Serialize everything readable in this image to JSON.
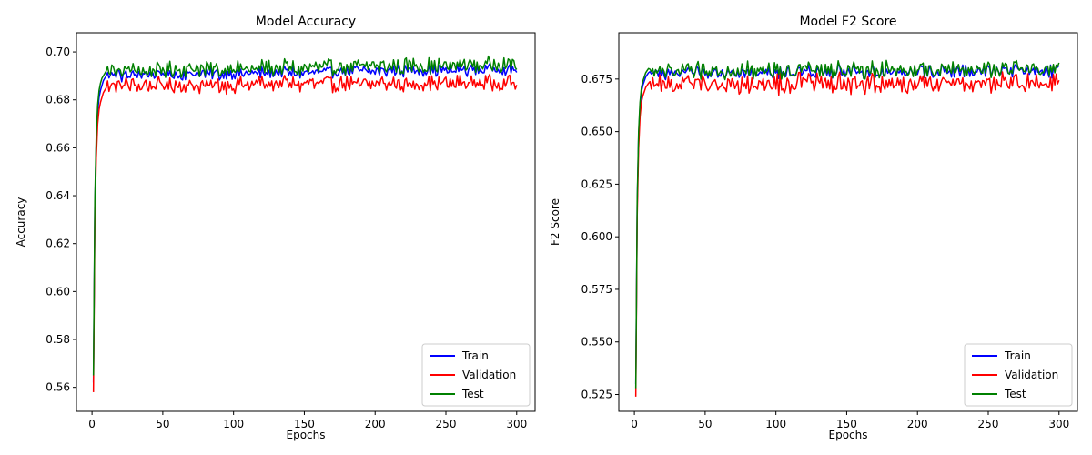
{
  "chart_data": [
    {
      "type": "line",
      "title": "Model Accuracy",
      "xlabel": "Epochs",
      "ylabel": "Accuracy",
      "xlim": [
        -11,
        313
      ],
      "ylim": [
        0.55,
        0.708
      ],
      "xticks": [
        0,
        50,
        100,
        150,
        200,
        250,
        300
      ],
      "yticks": [
        0.56,
        0.58,
        0.6,
        0.62,
        0.64,
        0.66,
        0.68,
        0.7
      ],
      "ytick_labels": [
        "0.56",
        "0.58",
        "0.60",
        "0.62",
        "0.64",
        "0.66",
        "0.68",
        "0.70"
      ],
      "grid": false,
      "legend": "lower-right",
      "warmup": {
        "x": [
          1,
          2,
          3,
          4,
          5,
          6,
          7,
          8,
          9,
          10
        ]
      },
      "series": [
        {
          "name": "Train",
          "color": "#0000ff",
          "warmup": [
            0.562,
            0.635,
            0.662,
            0.675,
            0.681,
            0.684,
            0.686,
            0.688,
            0.689,
            0.69
          ],
          "plateau": {
            "from": 10,
            "to": 300,
            "level_start": 0.69,
            "level_end": 0.693,
            "amplitude": 0.003
          }
        },
        {
          "name": "Validation",
          "color": "#ff0000",
          "warmup": [
            0.558,
            0.63,
            0.656,
            0.67,
            0.676,
            0.679,
            0.681,
            0.683,
            0.684,
            0.685
          ],
          "plateau": {
            "from": 10,
            "to": 300,
            "level_start": 0.686,
            "level_end": 0.687,
            "amplitude": 0.004
          }
        },
        {
          "name": "Test",
          "color": "#008000",
          "warmup": [
            0.565,
            0.638,
            0.665,
            0.678,
            0.684,
            0.687,
            0.689,
            0.69,
            0.691,
            0.692
          ],
          "plateau": {
            "from": 10,
            "to": 300,
            "level_start": 0.692,
            "level_end": 0.695,
            "amplitude": 0.004
          }
        }
      ]
    },
    {
      "type": "line",
      "title": "Model F2 Score",
      "xlabel": "Epochs",
      "ylabel": "F2 Score",
      "xlim": [
        -11,
        313
      ],
      "ylim": [
        0.517,
        0.697
      ],
      "xticks": [
        0,
        50,
        100,
        150,
        200,
        250,
        300
      ],
      "yticks": [
        0.525,
        0.55,
        0.575,
        0.6,
        0.625,
        0.65,
        0.675
      ],
      "ytick_labels": [
        "0.525",
        "0.550",
        "0.575",
        "0.600",
        "0.625",
        "0.650",
        "0.675"
      ],
      "grid": false,
      "legend": "lower-right",
      "warmup": {
        "x": [
          1,
          2,
          3,
          4,
          5,
          6,
          7,
          8,
          9,
          10
        ]
      },
      "series": [
        {
          "name": "Train",
          "color": "#0000ff",
          "warmup": [
            0.53,
            0.615,
            0.648,
            0.662,
            0.669,
            0.672,
            0.674,
            0.676,
            0.677,
            0.678
          ],
          "plateau": {
            "from": 10,
            "to": 300,
            "level_start": 0.678,
            "level_end": 0.679,
            "amplitude": 0.004
          }
        },
        {
          "name": "Validation",
          "color": "#ff0000",
          "warmup": [
            0.524,
            0.61,
            0.642,
            0.657,
            0.664,
            0.667,
            0.669,
            0.671,
            0.672,
            0.673
          ],
          "plateau": {
            "from": 10,
            "to": 300,
            "level_start": 0.673,
            "level_end": 0.673,
            "amplitude": 0.006
          }
        },
        {
          "name": "Test",
          "color": "#008000",
          "warmup": [
            0.528,
            0.617,
            0.65,
            0.664,
            0.671,
            0.674,
            0.676,
            0.678,
            0.679,
            0.68
          ],
          "plateau": {
            "from": 10,
            "to": 300,
            "level_start": 0.679,
            "level_end": 0.68,
            "amplitude": 0.005
          }
        }
      ]
    }
  ]
}
